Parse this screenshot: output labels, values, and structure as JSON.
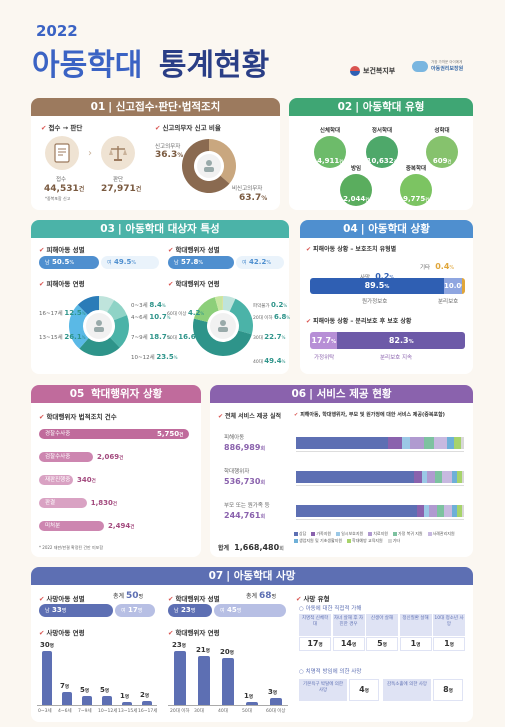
{
  "header": {
    "year": "2022",
    "title_left": "아동학대",
    "title_right": "통계현황",
    "org1": "보건복지부",
    "org2_top": "가장 가까운 아이에게",
    "org2": "아동권리보장원"
  },
  "colors": {
    "brown": "#9c7a5e",
    "green": "#3fa674",
    "teal": "#4bb3a8",
    "blue": "#4f8fcf",
    "pink": "#c06b9c",
    "purple": "#8a62ad",
    "navy": "#5d6fb3"
  },
  "s01": {
    "num": "01",
    "title": "신고접수·판단·법적조치",
    "sub1": "접수 → 판단",
    "sub2": "신고의무자 신고 비율",
    "intake_label": "접수",
    "intake_value": "44,531",
    "intake_unit": "건",
    "intake_note": "*중복포함 신고",
    "judge_label": "판단",
    "judge_value": "27,971",
    "judge_unit": "건",
    "mandatory_label": "신고의무자",
    "mandatory_value": "36.3",
    "mandatory_unit": "%",
    "non_label": "비신고의무자",
    "non_value": "63.7",
    "non_unit": "%",
    "chart_data": {
      "type": "pie",
      "categories": [
        "신고의무자",
        "비신고의무자"
      ],
      "values": [
        36.3,
        63.7
      ]
    }
  },
  "s02": {
    "num": "02",
    "title": "아동학대 유형",
    "items": [
      {
        "label": "신체학대",
        "value": "4,911",
        "unit": "건"
      },
      {
        "label": "정서학대",
        "value": "10,632",
        "unit": "건"
      },
      {
        "label": "성학대",
        "value": "609",
        "unit": "건"
      },
      {
        "label": "방임",
        "value": "2,044",
        "unit": "건"
      },
      {
        "label": "중복학대",
        "value": "9,775",
        "unit": "건"
      }
    ]
  },
  "s03": {
    "num": "03",
    "title": "아동학대 대상자 특성",
    "sub_child_sex": "피해아동 성별",
    "child_m_label": "남",
    "child_m": "50.5",
    "child_f_label": "여",
    "child_f": "49.5",
    "pct": "%",
    "sub_abuser_sex": "학대행위자 성별",
    "abuser_m_label": "남",
    "abuser_m": "57.8",
    "abuser_f_label": "여",
    "abuser_f": "42.2",
    "sub_child_age": "피해아동 연령",
    "child_age": [
      {
        "label": "0~3세",
        "value": "8.4"
      },
      {
        "label": "4~6세",
        "value": "10.7"
      },
      {
        "label": "7~9세",
        "value": "18.7"
      },
      {
        "label": "10~12세",
        "value": "23.5"
      },
      {
        "label": "13~15세",
        "value": "26.1"
      },
      {
        "label": "16~17세",
        "value": "12.5"
      }
    ],
    "sub_abuser_age": "학대행위자 연령",
    "abuser_age": [
      {
        "label": "20대 이하",
        "value": "6.8"
      },
      {
        "label": "30대",
        "value": "22.7"
      },
      {
        "label": "40대",
        "value": "49.4"
      },
      {
        "label": "50대",
        "value": "16.6"
      },
      {
        "label": "60대 이상",
        "value": "4.2"
      },
      {
        "label": "파악불가",
        "value": "0.2"
      }
    ],
    "chart_data": [
      {
        "type": "pie",
        "title": "피해아동 연령",
        "categories": [
          "0~3세",
          "4~6세",
          "7~9세",
          "10~12세",
          "13~15세",
          "16~17세"
        ],
        "values": [
          8.4,
          10.7,
          18.7,
          23.5,
          26.1,
          12.5
        ]
      },
      {
        "type": "pie",
        "title": "학대행위자 연령",
        "categories": [
          "20대 이하",
          "30대",
          "40대",
          "50대",
          "60대 이상",
          "파악불가"
        ],
        "values": [
          6.8,
          22.7,
          49.4,
          16.6,
          4.2,
          0.2
        ]
      }
    ]
  },
  "s04": {
    "num": "04",
    "title": "아동학대 상황",
    "sub1": "피해아동 상황 – 보호조치 유형별",
    "death_label": "사망",
    "death_value": "0.2",
    "other_label": "기타",
    "other_value": "0.4",
    "orig_value": "89.5",
    "orig_label": "원가정보호",
    "sep_value": "10.0",
    "sep_label": "분리보호",
    "sub2": "피해아동 상황 – 분리보호 후 보호 상황",
    "relative_value": "17.7",
    "relative_label": "가정위탁",
    "facility_value": "82.3",
    "facility_label": "분리보호 지속",
    "pct": "%"
  },
  "s05": {
    "num": "05",
    "title": "학대행위자 상황",
    "sub": "학대행위자 법적조치 건수",
    "bars": [
      {
        "label": "경찰수사중",
        "value": "5,750",
        "unit": "건",
        "n": 5750
      },
      {
        "label": "검찰수사중",
        "value": "2,069",
        "unit": "건",
        "n": 2069
      },
      {
        "label": "재판진행중",
        "value": "340",
        "unit": "건",
        "n": 340
      },
      {
        "label": "판결",
        "value": "1,830",
        "unit": "건",
        "n": 1830
      },
      {
        "label": "미처분",
        "value": "2,494",
        "unit": "건",
        "n": 2494
      }
    ],
    "note": "* 2022 재판/판결 확정된 건만 미포함"
  },
  "s06": {
    "num": "06",
    "title": "서비스 제공 현황",
    "sub1": "전체 서비스 제공 실적",
    "sub2": "피해아동, 학대행위자, 부모 및 원가정에 대한 서비스 제공(중복포함)",
    "rows": [
      {
        "label": "피해아동",
        "value": "886,989",
        "unit": "회"
      },
      {
        "label": "학대행위자",
        "value": "536,730",
        "unit": "회"
      },
      {
        "label": "부모 또는 원가족 등",
        "value": "244,761",
        "unit": "회"
      }
    ],
    "total_label": "합계",
    "total_value": "1,668,480",
    "total_unit": "회",
    "legend": [
      "상담",
      "가족지원",
      "일시보호지원",
      "치료지원",
      "가정 복귀 지원",
      "사례관리지원",
      "생업지원 및 기초생활지원",
      "학대예방 교육지원",
      "기타"
    ],
    "legend_colors": [
      "#5d6fb3",
      "#8a62ad",
      "#9bc8e6",
      "#b09ad0",
      "#7dc2a0",
      "#c7b9e0",
      "#6eb0d8",
      "#a7d36b",
      "#d8d8d8"
    ]
  },
  "s07": {
    "num": "07",
    "title": "아동학대 사망",
    "sub_sex": "사망아동 성별",
    "sex_total_label": "총계",
    "sex_total": "50",
    "unit_person": "명",
    "m_label": "남",
    "m_value": "33",
    "f_label": "여",
    "f_value": "17",
    "sub_age": "사망아동 연령",
    "age_bars": [
      {
        "label": "0~3세",
        "value": "30",
        "n": 30
      },
      {
        "label": "4~6세",
        "value": "7",
        "n": 7
      },
      {
        "label": "7~9세",
        "value": "5",
        "n": 5
      },
      {
        "label": "10~12세",
        "value": "5",
        "n": 5
      },
      {
        "label": "13~15세",
        "value": "1",
        "n": 1
      },
      {
        "label": "16~17세",
        "value": "2",
        "n": 2
      }
    ],
    "sub_ab_sex": "학대행위자 성별",
    "ab_total_label": "총계",
    "ab_total": "68",
    "ab_m_label": "남",
    "ab_m_value": "23",
    "ab_f_label": "여",
    "ab_f_value": "45",
    "sub_ab_age": "학대행위자 연령",
    "ab_age_bars": [
      {
        "label": "20대 이하",
        "value": "23",
        "n": 23
      },
      {
        "label": "30대",
        "value": "21",
        "n": 21
      },
      {
        "label": "40대",
        "value": "20",
        "n": 20
      },
      {
        "label": "50대",
        "value": "1",
        "n": 1
      },
      {
        "label": "60대 이상",
        "value": "3",
        "n": 3
      }
    ],
    "sub_type": "사망 유형",
    "type_sub1": "아동에 대한 직접적 가해",
    "type_cells": [
      {
        "label": "치명적 신체학대",
        "value": "17",
        "unit": "명"
      },
      {
        "label": "자녀 살해 후 자진한 경우",
        "value": "14",
        "unit": "명"
      },
      {
        "label": "신생아 살해",
        "value": "5",
        "unit": "명"
      },
      {
        "label": "정신질환 살해",
        "value": "1",
        "unit": "명"
      },
      {
        "label": "10대 청소년 사망",
        "value": "1",
        "unit": "명"
      }
    ],
    "type_sub2": "치명적 방임에 의한 사망",
    "neglect_cells": [
      {
        "label": "기본욕구 박탈에 의한 사망",
        "value": "4",
        "unit": "명"
      },
      {
        "label": "감독소홀에 의한 사망",
        "value": "8",
        "unit": "명"
      }
    ]
  }
}
